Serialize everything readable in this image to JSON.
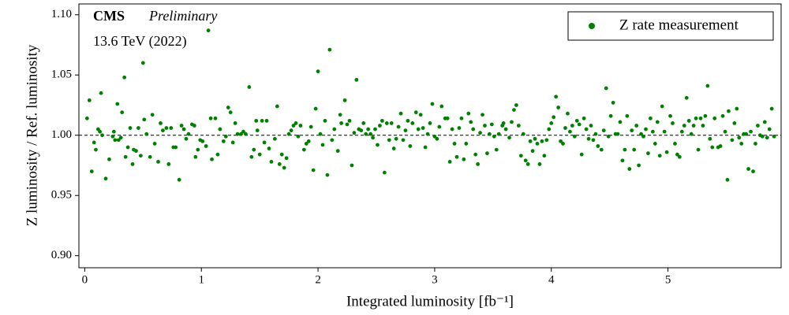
{
  "chart_data": {
    "type": "scatter",
    "texts": {
      "experiment": "CMS",
      "status": "Preliminary",
      "energy": "13.6 TeV (2022)"
    },
    "xlabel": "Integrated luminosity [fb⁻¹]",
    "ylabel": "Z luminosity / Ref. luminosity",
    "series": [
      {
        "name": "Z rate measurement",
        "color": "#008000",
        "x": [
          0.02,
          0.04,
          0.06,
          0.08,
          0.095,
          0.115,
          0.13,
          0.14,
          0.15,
          0.18,
          0.21,
          0.24,
          0.25,
          0.26,
          0.28,
          0.29,
          0.31,
          0.32,
          0.34,
          0.35,
          0.37,
          0.39,
          0.41,
          0.42,
          0.44,
          0.46,
          0.48,
          0.5,
          0.51,
          0.53,
          0.56,
          0.58,
          0.6,
          0.63,
          0.65,
          0.67,
          0.7,
          0.72,
          0.74,
          0.76,
          0.78,
          0.81,
          0.83,
          0.85,
          0.87,
          0.89,
          0.92,
          0.94,
          0.95,
          0.97,
          0.99,
          1.01,
          1.04,
          1.06,
          1.08,
          1.09,
          1.12,
          1.14,
          1.16,
          1.19,
          1.21,
          1.23,
          1.25,
          1.27,
          1.29,
          1.31,
          1.34,
          1.36,
          1.38,
          1.41,
          1.43,
          1.45,
          1.47,
          1.48,
          1.5,
          1.52,
          1.54,
          1.56,
          1.58,
          1.6,
          1.63,
          1.65,
          1.67,
          1.69,
          1.71,
          1.73,
          1.75,
          1.77,
          1.79,
          1.81,
          1.83,
          1.85,
          1.88,
          1.9,
          1.92,
          1.94,
          1.96,
          1.98,
          2.0,
          2.02,
          2.04,
          2.06,
          2.08,
          2.1,
          2.12,
          2.14,
          2.17,
          2.19,
          2.2,
          2.23,
          2.25,
          2.27,
          2.29,
          2.31,
          2.33,
          2.35,
          2.37,
          2.39,
          2.41,
          2.43,
          2.45,
          2.47,
          2.49,
          2.51,
          2.53,
          2.55,
          2.57,
          2.59,
          2.61,
          2.63,
          2.65,
          2.67,
          2.69,
          2.71,
          2.73,
          2.75,
          2.77,
          2.79,
          2.81,
          2.84,
          2.86,
          2.88,
          2.9,
          2.92,
          2.94,
          2.96,
          2.98,
          3.0,
          3.02,
          3.04,
          3.06,
          3.09,
          3.11,
          3.13,
          3.15,
          3.17,
          3.19,
          3.21,
          3.23,
          3.25,
          3.27,
          3.29,
          3.31,
          3.33,
          3.35,
          3.37,
          3.39,
          3.41,
          3.43,
          3.45,
          3.47,
          3.49,
          3.51,
          3.53,
          3.55,
          3.58,
          3.59,
          3.61,
          3.64,
          3.66,
          3.68,
          3.7,
          3.72,
          3.74,
          3.76,
          3.78,
          3.8,
          3.82,
          3.84,
          3.86,
          3.88,
          3.9,
          3.92,
          3.94,
          3.96,
          3.98,
          4.0,
          4.02,
          4.04,
          4.06,
          4.08,
          4.1,
          4.12,
          4.14,
          4.16,
          4.18,
          4.2,
          4.22,
          4.24,
          4.26,
          4.28,
          4.3,
          4.32,
          4.34,
          4.36,
          4.38,
          4.4,
          4.43,
          4.45,
          4.47,
          4.49,
          4.51,
          4.53,
          4.55,
          4.57,
          4.59,
          4.61,
          4.63,
          4.65,
          4.67,
          4.69,
          4.71,
          4.73,
          4.75,
          4.77,
          4.79,
          4.81,
          4.83,
          4.85,
          4.87,
          4.89,
          4.91,
          4.93,
          4.95,
          4.97,
          4.99,
          5.02,
          5.04,
          5.06,
          5.08,
          5.1,
          5.12,
          5.14,
          5.16,
          5.18,
          5.2,
          5.22,
          5.24,
          5.26,
          5.28,
          5.3,
          5.32,
          5.34,
          5.36,
          5.38,
          5.4,
          5.43,
          5.45,
          5.47,
          5.49,
          5.51,
          5.52,
          5.55,
          5.57,
          5.59,
          5.61,
          5.63,
          5.65,
          5.67,
          5.69,
          5.71,
          5.73,
          5.75,
          5.77,
          5.79,
          5.81,
          5.83,
          5.85,
          5.87,
          5.89,
          5.91
        ],
        "values": [
          1.014,
          1.029,
          0.97,
          0.994,
          0.988,
          1.005,
          1.003,
          1.035,
          1.0,
          0.964,
          0.98,
          0.999,
          1.003,
          0.996,
          1.026,
          0.996,
          0.998,
          1.019,
          1.048,
          0.982,
          0.99,
          1.006,
          0.976,
          0.988,
          0.987,
          1.006,
          0.983,
          1.06,
          1.013,
          1.001,
          0.982,
          1.017,
          0.993,
          0.978,
          1.01,
          1.004,
          1.006,
          0.976,
          1.006,
          0.99,
          0.99,
          0.963,
          1.008,
          1.005,
          0.997,
          1.001,
          1.009,
          1.008,
          0.982,
          0.988,
          0.996,
          0.995,
          0.991,
          1.087,
          1.014,
          0.98,
          1.014,
          0.984,
          1.005,
          0.995,
          0.999,
          1.023,
          1.019,
          0.994,
          1.01,
          1.001,
          1.001,
          1.003,
          1.001,
          1.04,
          0.982,
          0.988,
          1.012,
          1.004,
          0.984,
          1.012,
          0.994,
          1.012,
          0.989,
          0.978,
          0.997,
          1.024,
          0.976,
          0.984,
          0.973,
          0.981,
          1.001,
          1.004,
          1.008,
          1.01,
          0.999,
          1.008,
          0.988,
          0.993,
          0.995,
          1.007,
          0.971,
          1.022,
          1.053,
          1.001,
          0.992,
          1.012,
          0.967,
          1.071,
          0.996,
          1.005,
          0.987,
          1.017,
          1.01,
          1.029,
          1.009,
          1.012,
          0.975,
          1.002,
          1.046,
          1.005,
          1.004,
          1.01,
          1.001,
          1.005,
          1.001,
          0.998,
          1.005,
          0.992,
          1.008,
          1.012,
          0.969,
          1.01,
          0.996,
          1.01,
          0.989,
          0.997,
          1.007,
          1.018,
          0.996,
          1.004,
          1.012,
          0.991,
          1.01,
          1.019,
          1.005,
          1.017,
          1.006,
          0.99,
          1.001,
          1.01,
          1.026,
          0.999,
          0.997,
          1.007,
          1.024,
          1.014,
          1.014,
          0.978,
          1.005,
          0.993,
          0.982,
          1.006,
          1.014,
          0.98,
          0.993,
          1.018,
          1.011,
          1.005,
          0.984,
          0.976,
          1.002,
          1.017,
          1.008,
          0.985,
          1.001,
          1.009,
          0.999,
          0.988,
          1.001,
          1.008,
          1.01,
          1.005,
          0.998,
          1.011,
          1.021,
          1.025,
          1.008,
          0.983,
          1.001,
          0.979,
          0.976,
          0.995,
          0.987,
          0.997,
          0.993,
          0.976,
          0.995,
          0.983,
          0.996,
          1.005,
          1.01,
          1.015,
          1.032,
          1.023,
          0.995,
          0.993,
          1.006,
          1.018,
          1.003,
          1.008,
          0.999,
          1.012,
          1.009,
          0.984,
          1.014,
          1.005,
          0.997,
          1.008,
          0.996,
          1.001,
          0.991,
          0.988,
          1.004,
          1.039,
          0.999,
          1.016,
          1.027,
          1.001,
          1.001,
          1.011,
          0.979,
          0.988,
          1.016,
          0.972,
          1.004,
          0.988,
          1.008,
          0.975,
          1.001,
          0.999,
          1.005,
          0.985,
          1.014,
          1.003,
          0.993,
          1.011,
          0.983,
          1.024,
          1.003,
          0.986,
          1.016,
          1.01,
          0.993,
          0.984,
          0.982,
          1.003,
          1.008,
          1.031,
          1.012,
          1.001,
          1.008,
          1.014,
          0.988,
          1.014,
          1.008,
          1.016,
          1.041,
          0.997,
          0.99,
          1.014,
          0.99,
          0.991,
          1.016,
          1.003,
          0.963,
          1.02,
          0.996,
          1.01,
          1.022,
          0.998,
          0.993,
          1.001,
          1.001,
          0.972,
          1.003,
          0.97,
          0.993,
          1.008,
          1.0,
          0.999,
          1.011,
          0.998,
          1.005,
          1.022,
          0.999
        ]
      }
    ],
    "reference_line": 1.0,
    "xlim": [
      -0.05,
      5.97
    ],
    "xticks": [
      0,
      1,
      2,
      3,
      4,
      5
    ],
    "ylim": [
      0.89,
      1.109
    ],
    "yticks": [
      {
        "value": 0.9,
        "label": "0.90"
      },
      {
        "value": 0.95,
        "label": "0.95"
      },
      {
        "value": 1.0,
        "label": "1.00"
      },
      {
        "value": 1.05,
        "label": "1.05"
      },
      {
        "value": 1.1,
        "label": "1.10"
      }
    ],
    "legend": "upper right"
  }
}
